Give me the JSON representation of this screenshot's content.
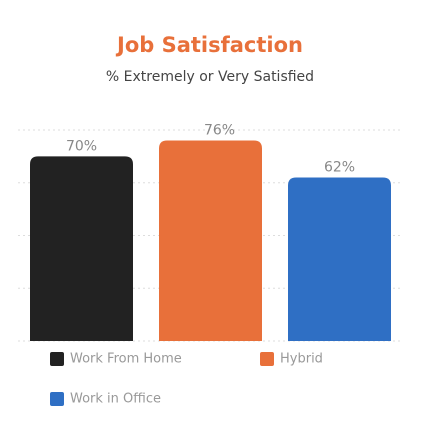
{
  "chart_data": {
    "type": "bar",
    "title": "Job Satisfaction",
    "subtitle": "% Extremely or Very Satisfied",
    "categories": [
      "Work From Home",
      "Hybrid",
      "Work in Office"
    ],
    "values": [
      70,
      76,
      62
    ],
    "value_labels": [
      "70%",
      "76%",
      "62%"
    ],
    "colors": [
      "#222222",
      "#e8703a",
      "#2f6fc4"
    ],
    "ylim": [
      0,
      80
    ],
    "yticks": [
      0,
      20,
      40,
      60,
      80
    ],
    "grid": true,
    "legend": "bottom"
  }
}
